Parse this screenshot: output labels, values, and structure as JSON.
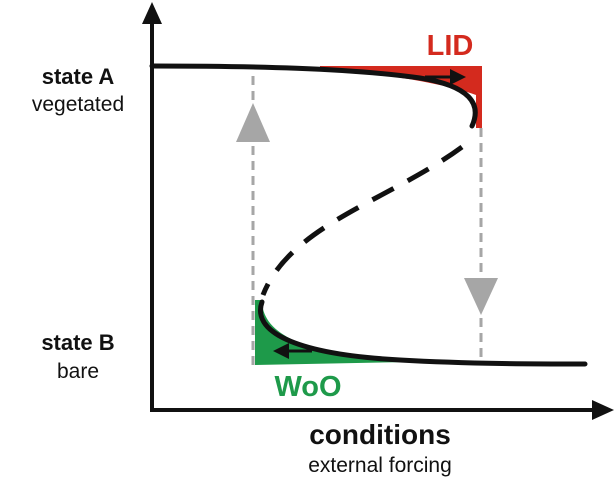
{
  "labels": {
    "state_a_title": "state A",
    "state_a_sub": "vegetated",
    "state_b_title": "state B",
    "state_b_sub": "bare",
    "x_title": "conditions",
    "x_sub": "external forcing",
    "lid": "LID",
    "woo": "WoO"
  },
  "colors": {
    "lid": "#d42a1e",
    "woo": "#1e9a4a",
    "curve": "#111111",
    "transition_arrow": "#a6a6a6",
    "axis": "#111111"
  }
}
